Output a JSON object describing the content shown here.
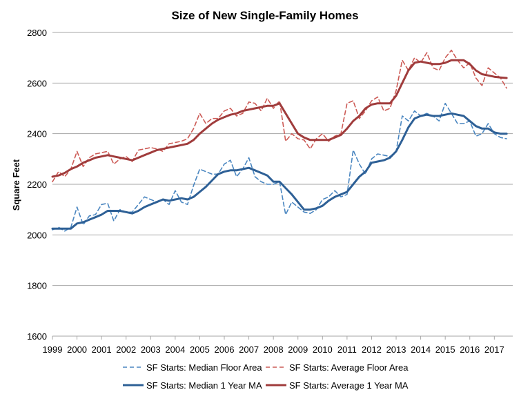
{
  "chart_data": {
    "type": "line",
    "title": "Size of New Single-Family Homes",
    "ylabel": "Square Feet",
    "xlabel": "",
    "ylim": [
      1600,
      2800
    ],
    "yticks": [
      1600,
      1800,
      2000,
      2200,
      2400,
      2600,
      2800
    ],
    "xlim": [
      1999,
      2017.75
    ],
    "xticks": [
      "1999",
      "2000",
      "2001",
      "2002",
      "2003",
      "2004",
      "2005",
      "2006",
      "2007",
      "2008",
      "2009",
      "2010",
      "2011",
      "2012",
      "2013",
      "2014",
      "2015",
      "2016",
      "2017"
    ],
    "grid": "horizontal",
    "legend_position": "bottom",
    "colors": {
      "blue": "#2e6096",
      "lightblue": "#4a86c0",
      "red": "#a03c3c",
      "lightred": "#cc5a55",
      "grid": "#a6a6a6"
    },
    "x": [
      1999.0,
      1999.25,
      1999.5,
      1999.75,
      2000.0,
      2000.25,
      2000.5,
      2000.75,
      2001.0,
      2001.25,
      2001.5,
      2001.75,
      2002.0,
      2002.25,
      2002.5,
      2002.75,
      2003.0,
      2003.25,
      2003.5,
      2003.75,
      2004.0,
      2004.25,
      2004.5,
      2004.75,
      2005.0,
      2005.25,
      2005.5,
      2005.75,
      2006.0,
      2006.25,
      2006.5,
      2006.75,
      2007.0,
      2007.25,
      2007.5,
      2007.75,
      2008.0,
      2008.25,
      2008.5,
      2008.75,
      2009.0,
      2009.25,
      2009.5,
      2009.75,
      2010.0,
      2010.25,
      2010.5,
      2010.75,
      2011.0,
      2011.25,
      2011.5,
      2011.75,
      2012.0,
      2012.25,
      2012.5,
      2012.75,
      2013.0,
      2013.25,
      2013.5,
      2013.75,
      2014.0,
      2014.25,
      2014.5,
      2014.75,
      2015.0,
      2015.25,
      2015.5,
      2015.75,
      2016.0,
      2016.25,
      2016.5,
      2016.75,
      2017.0,
      2017.25,
      2017.5
    ],
    "series": [
      {
        "name": "SF Starts: Median Floor Area",
        "style": "dashed",
        "color": "#4a86c0",
        "values": [
          2020,
          2030,
          2015,
          2030,
          2110,
          2040,
          2075,
          2080,
          2120,
          2125,
          2055,
          2100,
          2090,
          2090,
          2120,
          2150,
          2140,
          2130,
          2140,
          2120,
          2175,
          2130,
          2120,
          2195,
          2260,
          2250,
          2240,
          2240,
          2280,
          2295,
          2230,
          2260,
          2305,
          2230,
          2210,
          2200,
          2200,
          2210,
          2080,
          2130,
          2110,
          2090,
          2085,
          2100,
          2140,
          2150,
          2175,
          2150,
          2160,
          2335,
          2280,
          2240,
          2300,
          2320,
          2315,
          2310,
          2330,
          2470,
          2450,
          2490,
          2470,
          2480,
          2470,
          2450,
          2520,
          2480,
          2440,
          2440,
          2450,
          2390,
          2400,
          2440,
          2400,
          2385,
          2380
        ]
      },
      {
        "name": "SF Starts: Average Floor Area",
        "style": "dashed",
        "color": "#cc5a55",
        "values": [
          2210,
          2250,
          2230,
          2260,
          2330,
          2270,
          2305,
          2320,
          2325,
          2330,
          2280,
          2300,
          2310,
          2290,
          2335,
          2340,
          2345,
          2340,
          2330,
          2360,
          2365,
          2370,
          2380,
          2420,
          2480,
          2440,
          2460,
          2460,
          2490,
          2500,
          2470,
          2480,
          2525,
          2520,
          2490,
          2540,
          2500,
          2530,
          2370,
          2400,
          2380,
          2375,
          2340,
          2380,
          2400,
          2370,
          2390,
          2400,
          2520,
          2530,
          2460,
          2490,
          2530,
          2545,
          2490,
          2500,
          2570,
          2690,
          2650,
          2700,
          2680,
          2720,
          2660,
          2650,
          2700,
          2730,
          2690,
          2660,
          2680,
          2620,
          2590,
          2660,
          2640,
          2620,
          2580
        ]
      },
      {
        "name": "SF Starts: Median 1 Year MA",
        "style": "solid",
        "color": "#2e6096",
        "values": [
          2025,
          2025,
          2025,
          2025,
          2045,
          2050,
          2060,
          2070,
          2080,
          2095,
          2095,
          2095,
          2090,
          2085,
          2095,
          2110,
          2120,
          2130,
          2140,
          2135,
          2140,
          2145,
          2140,
          2150,
          2170,
          2190,
          2215,
          2240,
          2250,
          2255,
          2255,
          2260,
          2265,
          2255,
          2245,
          2235,
          2210,
          2210,
          2185,
          2160,
          2130,
          2100,
          2100,
          2105,
          2115,
          2135,
          2150,
          2160,
          2170,
          2200,
          2230,
          2250,
          2285,
          2290,
          2295,
          2305,
          2330,
          2375,
          2425,
          2460,
          2470,
          2475,
          2470,
          2470,
          2475,
          2480,
          2475,
          2470,
          2450,
          2430,
          2420,
          2420,
          2405,
          2400,
          2400
        ]
      },
      {
        "name": "SF Starts: Average 1 Year MA",
        "style": "solid",
        "color": "#a03c3c",
        "values": [
          2230,
          2235,
          2245,
          2260,
          2270,
          2285,
          2295,
          2305,
          2310,
          2315,
          2310,
          2305,
          2300,
          2295,
          2305,
          2315,
          2325,
          2335,
          2340,
          2345,
          2350,
          2355,
          2360,
          2375,
          2400,
          2420,
          2440,
          2455,
          2465,
          2475,
          2480,
          2490,
          2495,
          2500,
          2505,
          2510,
          2510,
          2520,
          2480,
          2440,
          2400,
          2385,
          2375,
          2375,
          2375,
          2375,
          2385,
          2395,
          2420,
          2450,
          2470,
          2500,
          2515,
          2520,
          2520,
          2520,
          2550,
          2600,
          2650,
          2680,
          2685,
          2680,
          2675,
          2675,
          2680,
          2690,
          2690,
          2690,
          2675,
          2650,
          2635,
          2630,
          2625,
          2622,
          2620
        ]
      }
    ]
  }
}
